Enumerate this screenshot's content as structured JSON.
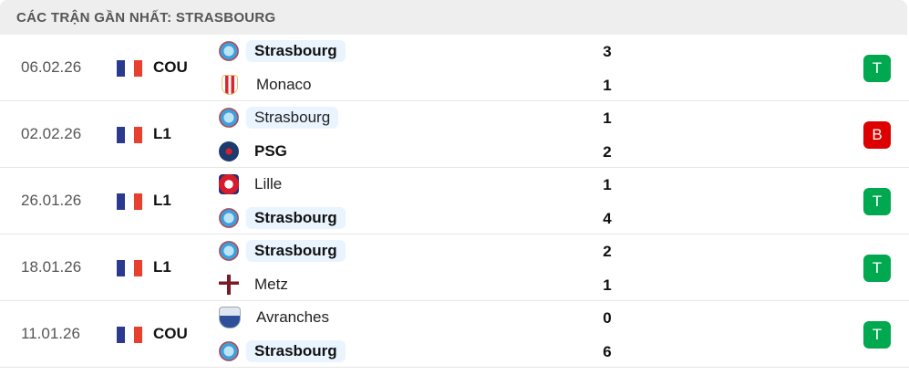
{
  "header": {
    "title": "CÁC TRẬN GẦN NHẤT: STRASBOURG"
  },
  "colors": {
    "win": "#00a84f",
    "loss": "#dd0000",
    "highlight": "#eaf4ff"
  },
  "matches": [
    {
      "date": "06.02.26",
      "league": "COU",
      "home": {
        "name": "Strasbourg",
        "logo": "strasbourg-logo",
        "bold": true,
        "highlight": true
      },
      "away": {
        "name": "Monaco",
        "logo": "monaco-logo",
        "bold": false,
        "highlight": false
      },
      "home_score": "3",
      "away_score": "1",
      "result": "T"
    },
    {
      "date": "02.02.26",
      "league": "L1",
      "home": {
        "name": "Strasbourg",
        "logo": "strasbourg-logo",
        "bold": false,
        "highlight": true
      },
      "away": {
        "name": "PSG",
        "logo": "psg-logo",
        "bold": true,
        "highlight": false
      },
      "home_score": "1",
      "away_score": "2",
      "result": "B"
    },
    {
      "date": "26.01.26",
      "league": "L1",
      "home": {
        "name": "Lille",
        "logo": "lille-logo",
        "bold": false,
        "highlight": false
      },
      "away": {
        "name": "Strasbourg",
        "logo": "strasbourg-logo",
        "bold": true,
        "highlight": true
      },
      "home_score": "1",
      "away_score": "4",
      "result": "T"
    },
    {
      "date": "18.01.26",
      "league": "L1",
      "home": {
        "name": "Strasbourg",
        "logo": "strasbourg-logo",
        "bold": true,
        "highlight": true
      },
      "away": {
        "name": "Metz",
        "logo": "metz-logo",
        "bold": false,
        "highlight": false
      },
      "home_score": "2",
      "away_score": "1",
      "result": "T"
    },
    {
      "date": "11.01.26",
      "league": "COU",
      "home": {
        "name": "Avranches",
        "logo": "avranches-logo",
        "bold": false,
        "highlight": false
      },
      "away": {
        "name": "Strasbourg",
        "logo": "strasbourg-logo",
        "bold": true,
        "highlight": true
      },
      "home_score": "0",
      "away_score": "6",
      "result": "T"
    }
  ]
}
